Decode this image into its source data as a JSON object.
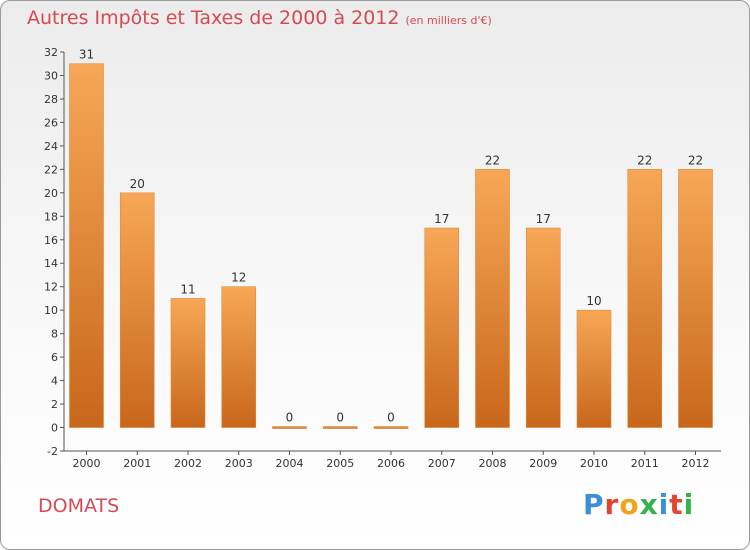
{
  "chart_data": {
    "type": "bar",
    "title": "Autres Impôts et Taxes de 2000 à 2012",
    "unit": "(en milliers d'€)",
    "categories": [
      "2000",
      "2001",
      "2002",
      "2003",
      "2004",
      "2005",
      "2006",
      "2007",
      "2008",
      "2009",
      "2010",
      "2011",
      "2012"
    ],
    "values": [
      31,
      20,
      11,
      12,
      0,
      0,
      0,
      17,
      22,
      17,
      10,
      22,
      22
    ],
    "ylim": [
      -2,
      32
    ],
    "yticks": [
      -2,
      0,
      2,
      4,
      6,
      8,
      10,
      12,
      14,
      16,
      18,
      20,
      22,
      24,
      26,
      28,
      30,
      32
    ],
    "grid": false,
    "bar_color": "#f39a45"
  },
  "footer": {
    "town": "DOMATS",
    "logo": "Proxiti"
  },
  "colors": {
    "title": "#d44a52",
    "logo": [
      "#3b8fd6",
      "#e3442f",
      "#f2a31b",
      "#33b34a",
      "#3b8fd6",
      "#e3442f",
      "#33b34a"
    ]
  }
}
